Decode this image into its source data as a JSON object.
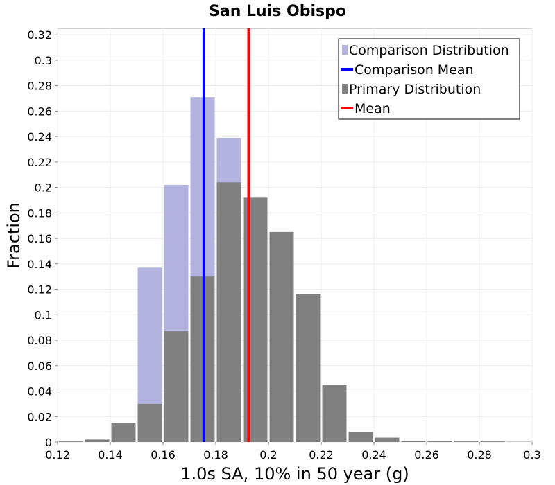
{
  "chart_data": {
    "type": "bar",
    "title": "San Luis Obispo",
    "xlabel": "1.0s SA, 10% in 50 year (g)",
    "ylabel": "Fraction",
    "xlim": [
      0.12,
      0.3
    ],
    "ylim": [
      0,
      0.325
    ],
    "xticks": [
      "0.12",
      "0.14",
      "0.16",
      "0.18",
      "0.2",
      "0.22",
      "0.24",
      "0.26",
      "0.28",
      "0.3"
    ],
    "yticks": [
      "0",
      "0.02",
      "0.04",
      "0.06",
      "0.08",
      "0.1",
      "0.12",
      "0.14",
      "0.16",
      "0.18",
      "0.2",
      "0.22",
      "0.24",
      "0.26",
      "0.28",
      "0.3",
      "0.32"
    ],
    "bin_centers": [
      0.125,
      0.135,
      0.145,
      0.155,
      0.165,
      0.175,
      0.185,
      0.195,
      0.205,
      0.215,
      0.225,
      0.235,
      0.245,
      0.255,
      0.265,
      0.275,
      0.285,
      0.295
    ],
    "series": [
      {
        "name": "Comparison Distribution",
        "color": "#b3b3df",
        "values": [
          0,
          0,
          0,
          0.137,
          0.202,
          0.271,
          0.239,
          0.179,
          0.165,
          0.116,
          0.045,
          0.007,
          0.003,
          0.001,
          0,
          0,
          0,
          0
        ]
      },
      {
        "name": "Primary Distribution",
        "color": "#808080",
        "values": [
          0.0005,
          0.002,
          0.015,
          0.03,
          0.087,
          0.13,
          0.204,
          0.192,
          0.165,
          0.116,
          0.045,
          0.008,
          0.0035,
          0.001,
          0.0008,
          0.0005,
          0.0005,
          0.0002
        ]
      }
    ],
    "lines": [
      {
        "name": "Comparison Mean",
        "color": "#0000ff",
        "x": 0.1755
      },
      {
        "name": "Mean",
        "color": "#ff0000",
        "x": 0.1925
      }
    ],
    "legend": {
      "position": "top-right",
      "items": [
        {
          "label": "Comparison Distribution",
          "kind": "bar",
          "color": "#b3b3df"
        },
        {
          "label": "Comparison Mean",
          "kind": "line",
          "color": "#0000ff"
        },
        {
          "label": "Primary Distribution",
          "kind": "bar",
          "color": "#808080"
        },
        {
          "label": "Mean",
          "kind": "line",
          "color": "#ff0000"
        }
      ]
    },
    "grid": true
  }
}
